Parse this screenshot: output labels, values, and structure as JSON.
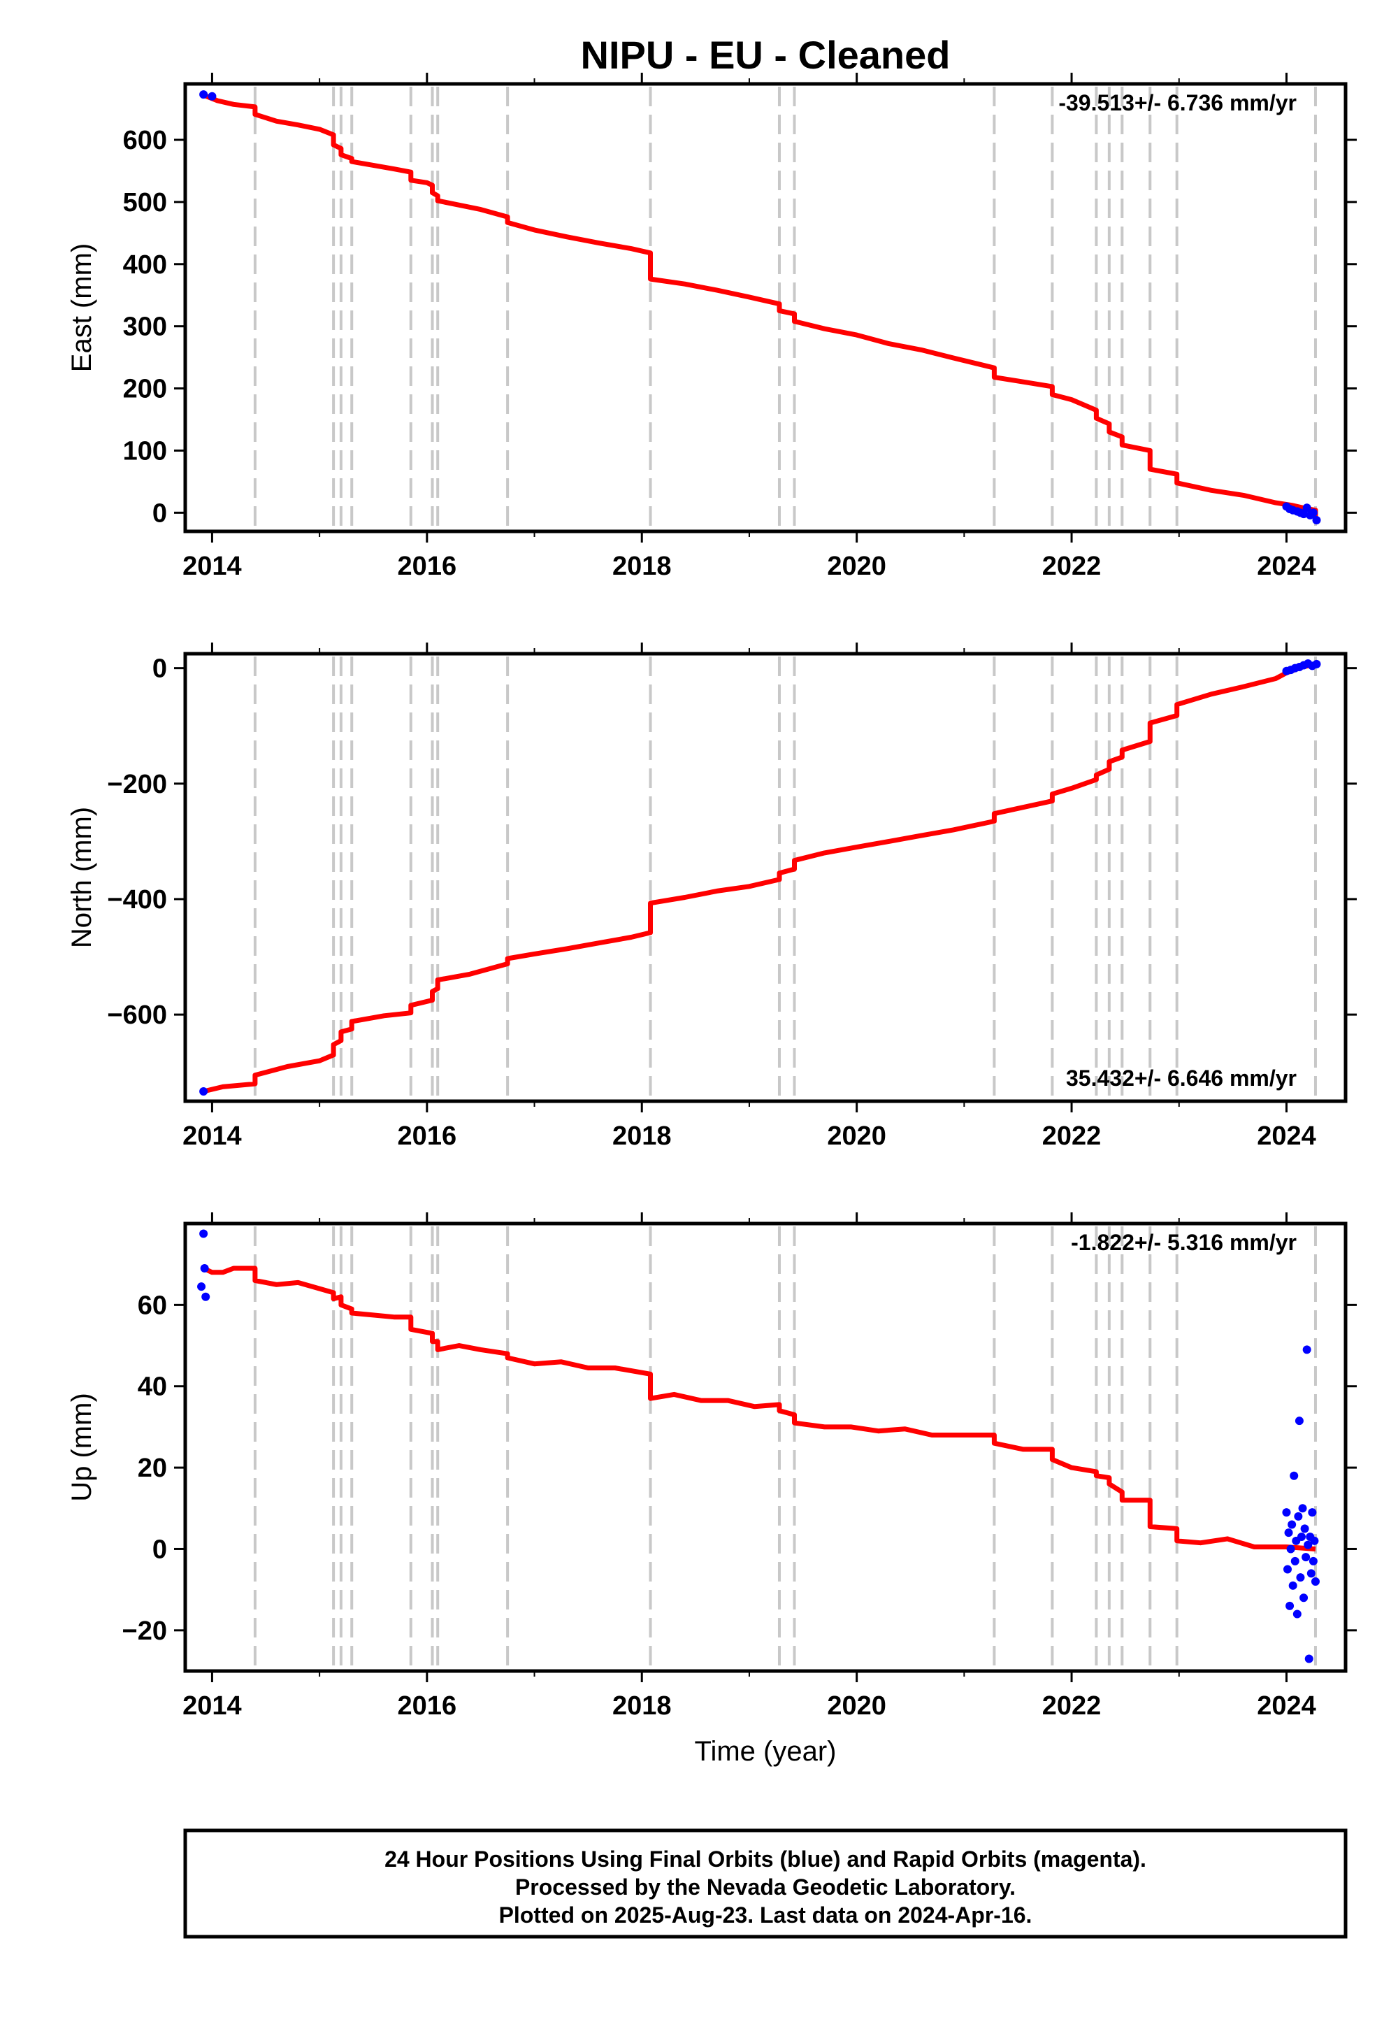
{
  "title": "NIPU  - EU - Cleaned",
  "xlabel": "Time (year)",
  "footer": {
    "line1": "24 Hour Positions Using Final Orbits (blue) and Rapid Orbits (magenta).",
    "line2": "Processed by the Nevada Geodetic Laboratory.",
    "line3": "Plotted on 2025-Aug-23. Last data on 2024-Apr-16."
  },
  "colors": {
    "model": "#ff0000",
    "final_orbits": "#0000ff",
    "rapid_orbits": "#ff00ff",
    "steps": "#c8c8c8"
  },
  "chart_data": [
    {
      "type": "line",
      "ylabel": "East (mm)",
      "rate_label": "-39.513+/- 6.736 mm/yr",
      "rate_position": "top-right",
      "xlim": [
        2013.75,
        2024.55
      ],
      "ylim": [
        -30,
        690
      ],
      "xticks": [
        2014,
        2016,
        2018,
        2020,
        2022,
        2024
      ],
      "yticks": [
        0,
        100,
        200,
        300,
        400,
        500,
        600
      ],
      "ytick_labels": [
        "0",
        "100",
        "200",
        "300",
        "400",
        "500",
        "600"
      ],
      "step_epochs": [
        2014.4,
        2015.13,
        2015.2,
        2015.3,
        2015.85,
        2016.05,
        2016.1,
        2016.75,
        2018.08,
        2019.28,
        2019.42,
        2021.28,
        2021.82,
        2022.23,
        2022.35,
        2022.47,
        2022.73,
        2022.98,
        2024.27
      ],
      "series": [
        {
          "name": "model",
          "x": [
            2013.92,
            2014.05,
            2014.2,
            2014.4,
            2014.4,
            2014.6,
            2014.8,
            2015.0,
            2015.13,
            2015.13,
            2015.2,
            2015.2,
            2015.3,
            2015.3,
            2015.5,
            2015.7,
            2015.85,
            2015.85,
            2016.0,
            2016.05,
            2016.05,
            2016.1,
            2016.1,
            2016.3,
            2016.5,
            2016.75,
            2016.75,
            2017.0,
            2017.3,
            2017.6,
            2017.9,
            2018.08,
            2018.08,
            2018.4,
            2018.7,
            2019.0,
            2019.28,
            2019.28,
            2019.42,
            2019.42,
            2019.7,
            2020.0,
            2020.3,
            2020.6,
            2020.9,
            2021.28,
            2021.28,
            2021.5,
            2021.82,
            2021.82,
            2022.0,
            2022.23,
            2022.23,
            2022.35,
            2022.35,
            2022.47,
            2022.47,
            2022.73,
            2022.73,
            2022.98,
            2022.98,
            2023.3,
            2023.6,
            2023.9,
            2024.05,
            2024.15,
            2024.27,
            2024.27,
            2024.3
          ],
          "y": [
            672,
            663,
            657,
            653,
            641,
            630,
            624,
            617,
            608,
            592,
            586,
            576,
            570,
            565,
            559,
            553,
            548,
            535,
            531,
            527,
            515,
            510,
            502,
            495,
            488,
            476,
            467,
            455,
            444,
            434,
            425,
            418,
            376,
            368,
            358,
            347,
            336,
            325,
            320,
            308,
            296,
            286,
            272,
            262,
            249,
            233,
            218,
            212,
            203,
            190,
            182,
            165,
            152,
            143,
            130,
            122,
            109,
            100,
            70,
            62,
            48,
            36,
            28,
            16,
            12,
            8,
            4,
            -8,
            -12
          ]
        },
        {
          "name": "final_orbits",
          "x": [
            2013.92,
            2014.0,
            2024.0,
            2024.03,
            2024.06,
            2024.1,
            2024.13,
            2024.16,
            2024.19,
            2024.22,
            2024.25,
            2024.28
          ],
          "y": [
            673,
            670,
            10,
            6,
            4,
            2,
            0,
            -2,
            8,
            -4,
            0,
            -12
          ]
        }
      ]
    },
    {
      "type": "line",
      "ylabel": "North (mm)",
      "rate_label": "35.432+/- 6.646 mm/yr",
      "rate_position": "bottom-right",
      "xlim": [
        2013.75,
        2024.55
      ],
      "ylim": [
        -750,
        25
      ],
      "xticks": [
        2014,
        2016,
        2018,
        2020,
        2022,
        2024
      ],
      "yticks": [
        -600,
        -400,
        -200,
        0
      ],
      "ytick_labels": [
        "−600",
        "−400",
        "−200",
        "0"
      ],
      "step_epochs": [
        2014.4,
        2015.13,
        2015.2,
        2015.3,
        2015.85,
        2016.05,
        2016.1,
        2016.75,
        2018.08,
        2019.28,
        2019.42,
        2021.28,
        2021.82,
        2022.23,
        2022.35,
        2022.47,
        2022.73,
        2022.98,
        2024.27
      ],
      "series": [
        {
          "name": "model",
          "x": [
            2013.92,
            2014.1,
            2014.4,
            2014.4,
            2014.7,
            2015.0,
            2015.13,
            2015.13,
            2015.2,
            2015.2,
            2015.3,
            2015.3,
            2015.6,
            2015.85,
            2015.85,
            2016.05,
            2016.05,
            2016.1,
            2016.1,
            2016.4,
            2016.75,
            2016.75,
            2017.0,
            2017.3,
            2017.6,
            2017.9,
            2018.08,
            2018.08,
            2018.4,
            2018.7,
            2019.0,
            2019.28,
            2019.28,
            2019.42,
            2019.42,
            2019.7,
            2020.0,
            2020.3,
            2020.6,
            2020.9,
            2021.28,
            2021.28,
            2021.5,
            2021.82,
            2021.82,
            2022.0,
            2022.23,
            2022.23,
            2022.35,
            2022.35,
            2022.47,
            2022.47,
            2022.73,
            2022.73,
            2022.98,
            2022.98,
            2023.3,
            2023.6,
            2023.9,
            2024.0,
            2024.15,
            2024.3
          ],
          "y": [
            -733,
            -725,
            -720,
            -705,
            -690,
            -680,
            -670,
            -652,
            -645,
            -630,
            -625,
            -612,
            -602,
            -597,
            -584,
            -575,
            -560,
            -555,
            -540,
            -530,
            -512,
            -503,
            -495,
            -486,
            -476,
            -466,
            -458,
            -407,
            -397,
            -386,
            -378,
            -366,
            -355,
            -348,
            -333,
            -320,
            -310,
            -300,
            -290,
            -280,
            -265,
            -252,
            -243,
            -230,
            -218,
            -208,
            -193,
            -185,
            -175,
            -162,
            -154,
            -142,
            -127,
            -95,
            -82,
            -63,
            -45,
            -32,
            -18,
            -8,
            2,
            8
          ]
        },
        {
          "name": "final_orbits",
          "x": [
            2013.92,
            2024.0,
            2024.04,
            2024.08,
            2024.12,
            2024.16,
            2024.2,
            2024.24,
            2024.28
          ],
          "y": [
            -733,
            -5,
            -3,
            0,
            2,
            5,
            8,
            4,
            7
          ]
        }
      ]
    },
    {
      "type": "line",
      "ylabel": "Up (mm)",
      "rate_label": "-1.822+/- 5.316 mm/yr",
      "rate_position": "top-right",
      "xlim": [
        2013.75,
        2024.55
      ],
      "ylim": [
        -30,
        80
      ],
      "xticks": [
        2014,
        2016,
        2018,
        2020,
        2022,
        2024
      ],
      "yticks": [
        -20,
        0,
        20,
        40,
        60
      ],
      "ytick_labels": [
        "−20",
        "0",
        "20",
        "40",
        "60"
      ],
      "step_epochs": [
        2014.4,
        2015.13,
        2015.2,
        2015.3,
        2015.85,
        2016.05,
        2016.1,
        2016.75,
        2018.08,
        2019.28,
        2019.42,
        2021.28,
        2021.82,
        2022.23,
        2022.35,
        2022.47,
        2022.73,
        2022.98,
        2024.27
      ],
      "series": [
        {
          "name": "model",
          "x": [
            2013.92,
            2014.0,
            2014.1,
            2014.2,
            2014.3,
            2014.4,
            2014.4,
            2014.6,
            2014.8,
            2015.0,
            2015.13,
            2015.13,
            2015.2,
            2015.2,
            2015.3,
            2015.3,
            2015.5,
            2015.7,
            2015.85,
            2015.85,
            2016.05,
            2016.05,
            2016.1,
            2016.1,
            2016.3,
            2016.5,
            2016.75,
            2016.75,
            2017.0,
            2017.25,
            2017.5,
            2017.75,
            2018.08,
            2018.08,
            2018.3,
            2018.55,
            2018.8,
            2019.05,
            2019.28,
            2019.28,
            2019.42,
            2019.42,
            2019.7,
            2019.95,
            2020.2,
            2020.45,
            2020.7,
            2020.95,
            2021.28,
            2021.28,
            2021.55,
            2021.82,
            2021.82,
            2022.0,
            2022.23,
            2022.23,
            2022.35,
            2022.35,
            2022.47,
            2022.47,
            2022.73,
            2022.73,
            2022.98,
            2022.98,
            2023.2,
            2023.45,
            2023.7,
            2024.0,
            2024.27
          ],
          "y": [
            69,
            68,
            68,
            69,
            69,
            69,
            66,
            65,
            65.5,
            64,
            63,
            61.5,
            62,
            60,
            59,
            58,
            57.5,
            57,
            57,
            54,
            53,
            51,
            51,
            49,
            50,
            49,
            48,
            47,
            45.5,
            46,
            44.5,
            44.5,
            43,
            37,
            38,
            36.5,
            36.5,
            35,
            35.5,
            34,
            33,
            31,
            30,
            30,
            29,
            29.5,
            28,
            28,
            28,
            26,
            24.5,
            24.5,
            22,
            20,
            19,
            18,
            17.5,
            16,
            14,
            12,
            12,
            5.5,
            5,
            2,
            1.5,
            2.5,
            0.5,
            0.5,
            0
          ]
        },
        {
          "name": "final_orbits",
          "x": [
            2013.9,
            2013.92,
            2013.93,
            2013.94,
            2024.0,
            2024.01,
            2024.02,
            2024.03,
            2024.04,
            2024.05,
            2024.06,
            2024.07,
            2024.08,
            2024.09,
            2024.1,
            2024.11,
            2024.12,
            2024.13,
            2024.14,
            2024.15,
            2024.16,
            2024.17,
            2024.18,
            2024.19,
            2024.2,
            2024.21,
            2024.22,
            2024.23,
            2024.24,
            2024.25,
            2024.26,
            2024.27
          ],
          "y": [
            64.5,
            77.5,
            69,
            62,
            9,
            -5,
            4,
            -14,
            0,
            6,
            -9,
            18,
            -3,
            2,
            -16,
            8,
            31.5,
            -7,
            3,
            10,
            -12,
            5,
            -2,
            49,
            1,
            -27,
            3,
            -6,
            9,
            -3,
            2,
            -8
          ]
        }
      ]
    }
  ]
}
